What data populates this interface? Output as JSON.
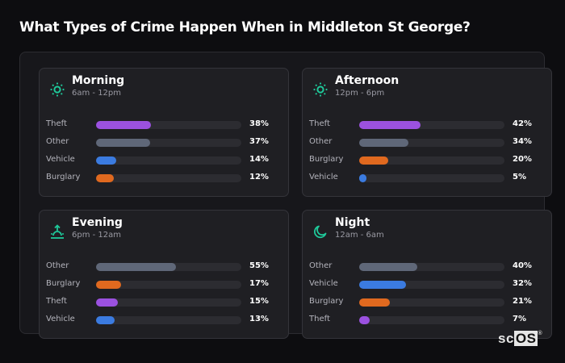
{
  "title": "What Types of Crime Happen When in Middleton St George?",
  "colors": {
    "theft": "#9b51e0",
    "other": "#5f6778",
    "vehicle": "#3b7be0",
    "burglary": "#e0691f",
    "icon": "#1fc99a"
  },
  "cards": [
    {
      "name": "Morning",
      "range": "6am - 12pm",
      "icon": "sun-icon",
      "rows": [
        {
          "label": "Theft",
          "value": 38,
          "pct": "38%",
          "key": "theft"
        },
        {
          "label": "Other",
          "value": 37,
          "pct": "37%",
          "key": "other"
        },
        {
          "label": "Vehicle",
          "value": 14,
          "pct": "14%",
          "key": "vehicle"
        },
        {
          "label": "Burglary",
          "value": 12,
          "pct": "12%",
          "key": "burglary"
        }
      ]
    },
    {
      "name": "Afternoon",
      "range": "12pm - 6pm",
      "icon": "sun-icon",
      "rows": [
        {
          "label": "Theft",
          "value": 42,
          "pct": "42%",
          "key": "theft"
        },
        {
          "label": "Other",
          "value": 34,
          "pct": "34%",
          "key": "other"
        },
        {
          "label": "Burglary",
          "value": 20,
          "pct": "20%",
          "key": "burglary"
        },
        {
          "label": "Vehicle",
          "value": 5,
          "pct": "5%",
          "key": "vehicle"
        }
      ]
    },
    {
      "name": "Evening",
      "range": "6pm - 12am",
      "icon": "sunset-icon",
      "rows": [
        {
          "label": "Other",
          "value": 55,
          "pct": "55%",
          "key": "other"
        },
        {
          "label": "Burglary",
          "value": 17,
          "pct": "17%",
          "key": "burglary"
        },
        {
          "label": "Theft",
          "value": 15,
          "pct": "15%",
          "key": "theft"
        },
        {
          "label": "Vehicle",
          "value": 13,
          "pct": "13%",
          "key": "vehicle"
        }
      ]
    },
    {
      "name": "Night",
      "range": "12am - 6am",
      "icon": "moon-icon",
      "rows": [
        {
          "label": "Other",
          "value": 40,
          "pct": "40%",
          "key": "other"
        },
        {
          "label": "Vehicle",
          "value": 32,
          "pct": "32%",
          "key": "vehicle"
        },
        {
          "label": "Burglary",
          "value": 21,
          "pct": "21%",
          "key": "burglary"
        },
        {
          "label": "Theft",
          "value": 7,
          "pct": "7%",
          "key": "theft"
        }
      ]
    }
  ],
  "logo": {
    "sc": "sc",
    "os": "OS",
    "reg": "®"
  },
  "chart_data": {
    "type": "bar",
    "title": "What Types of Crime Happen When in Middleton St George?",
    "orientation": "horizontal",
    "xlim": [
      0,
      100
    ],
    "unit": "%",
    "panels": [
      {
        "title": "Morning",
        "subtitle": "6am - 12pm",
        "categories": [
          "Theft",
          "Other",
          "Vehicle",
          "Burglary"
        ],
        "values": [
          38,
          37,
          14,
          12
        ]
      },
      {
        "title": "Afternoon",
        "subtitle": "12pm - 6pm",
        "categories": [
          "Theft",
          "Other",
          "Burglary",
          "Vehicle"
        ],
        "values": [
          42,
          34,
          20,
          5
        ]
      },
      {
        "title": "Evening",
        "subtitle": "6pm - 12am",
        "categories": [
          "Other",
          "Burglary",
          "Theft",
          "Vehicle"
        ],
        "values": [
          55,
          17,
          15,
          13
        ]
      },
      {
        "title": "Night",
        "subtitle": "12am - 6am",
        "categories": [
          "Other",
          "Vehicle",
          "Burglary",
          "Theft"
        ],
        "values": [
          40,
          32,
          21,
          7
        ]
      }
    ],
    "legend": null,
    "grid": false
  }
}
